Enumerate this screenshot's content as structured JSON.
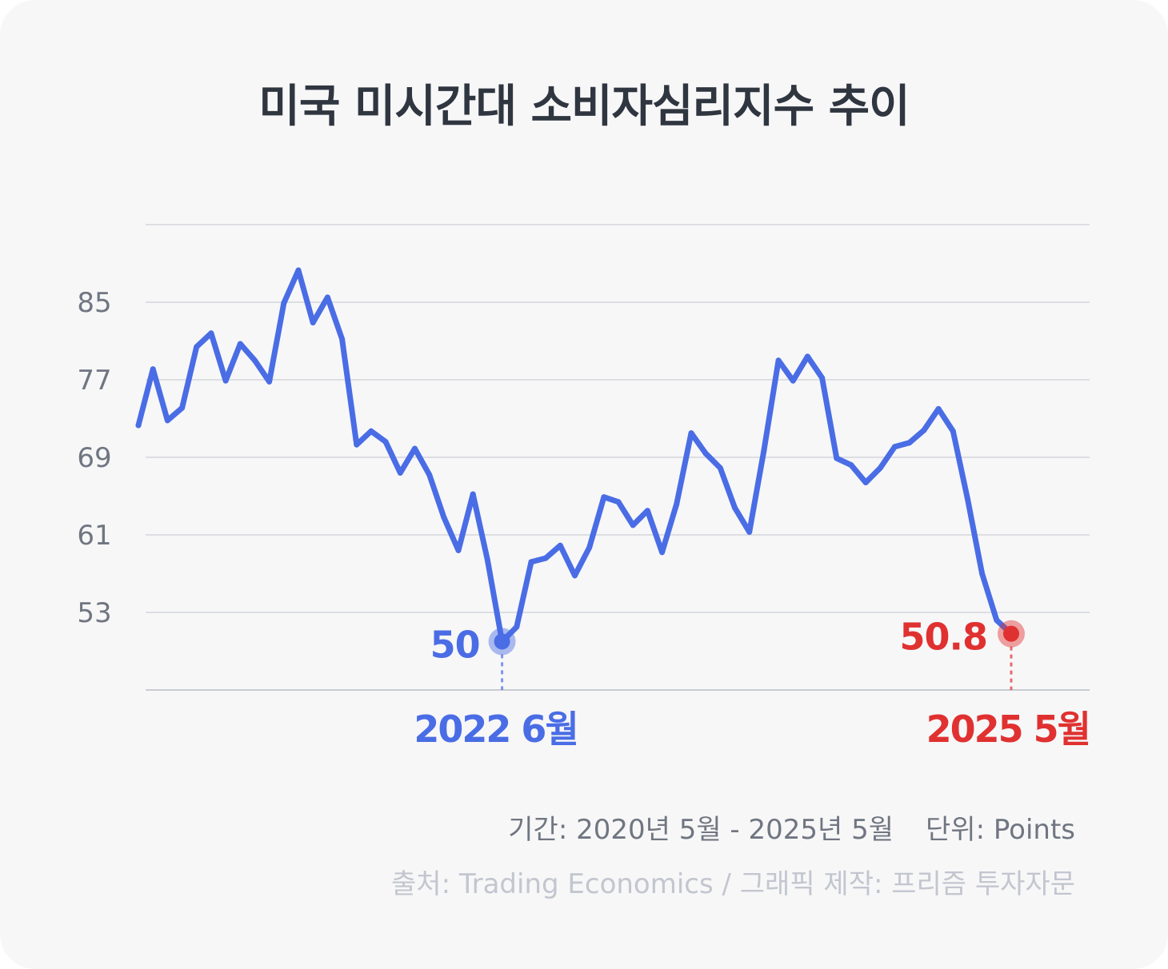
{
  "title": "미국 미시간대 소비자심리지수 추이",
  "chart_data": {
    "type": "line",
    "title": "미국 미시간대 소비자심리지수 추이",
    "ylabel": "",
    "xlabel": "",
    "ylim": [
      45,
      93
    ],
    "yticks": [
      53,
      61,
      69,
      77,
      85
    ],
    "grid": true,
    "x_start": "2020-05",
    "x_end": "2025-05",
    "series": [
      {
        "values": [
          72.3,
          78.1,
          72.8,
          74.1,
          80.4,
          81.8,
          76.9,
          80.7,
          79.0,
          76.8,
          84.9,
          88.3,
          82.9,
          85.5,
          81.2,
          70.3,
          71.7,
          70.6,
          67.4,
          69.9,
          67.2,
          62.8,
          59.4,
          65.2,
          58.4,
          50.0,
          51.5,
          58.2,
          58.6,
          59.9,
          56.8,
          59.7,
          64.9,
          64.4,
          62.0,
          63.5,
          59.2,
          64.2,
          71.5,
          69.4,
          67.9,
          63.8,
          61.3,
          69.7,
          79.0,
          76.9,
          79.4,
          77.2,
          68.9,
          68.2,
          66.4,
          67.9,
          70.1,
          70.5,
          71.8,
          74.0,
          71.7,
          64.7,
          57.0,
          52.2,
          50.8
        ]
      }
    ],
    "annotations": [
      {
        "value": "50",
        "date": "2022 6월",
        "color": "#4a6de5"
      },
      {
        "value": "50.8",
        "date": "2025 5월",
        "color": "#e03131"
      }
    ]
  },
  "period_text": "기간: 2020년 5월 - 2025년 5월",
  "unit_text": "단위: Points",
  "source_text": "출처: Trading Economics  / 그래픽 제작: 프리즘 투자자문",
  "colors": {
    "line": "#4a6de5",
    "low_marker": "#4a6de5",
    "latest_marker": "#e03131"
  }
}
